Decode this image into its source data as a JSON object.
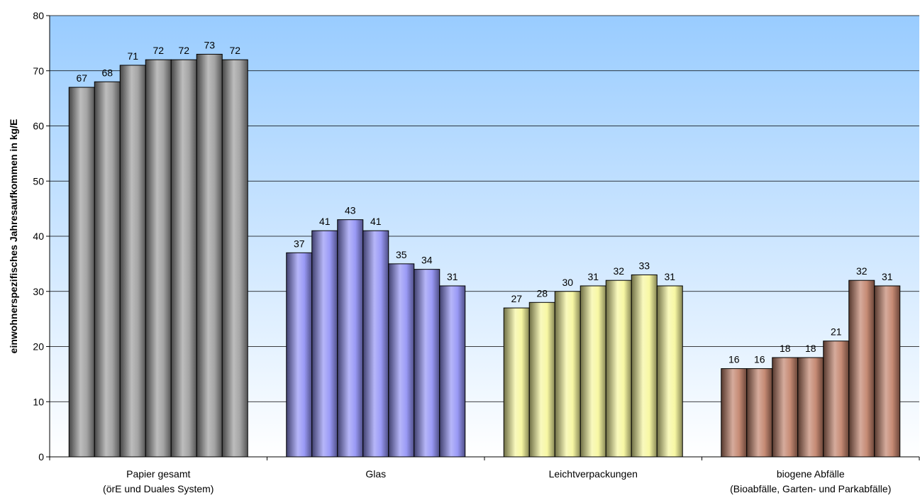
{
  "chart_data": {
    "type": "bar",
    "title": "",
    "ylabel": "einwohnerspezifisches Jahresaufkommen in kg/E",
    "xlabel": "",
    "ylim": [
      0,
      80
    ],
    "yticks": [
      0,
      10,
      20,
      30,
      40,
      50,
      60,
      70,
      80
    ],
    "grid": true,
    "legend": "none",
    "categories": [
      [
        "Papier gesamt",
        "(örE und Duales System)"
      ],
      [
        "Glas"
      ],
      [
        "Leichtverpackungen"
      ],
      [
        "biogene Abfälle",
        "(Bioabfälle, Garten- und Parkabfälle)"
      ]
    ],
    "groups": [
      {
        "color": "#9a9a9a",
        "values": [
          67,
          68,
          71,
          72,
          72,
          73,
          72
        ],
        "labels": [
          "67",
          "68",
          "71",
          "72",
          "72",
          "73",
          "72"
        ]
      },
      {
        "color": "#8f8ff5",
        "values": [
          37,
          41,
          43,
          41,
          35,
          34,
          31
        ],
        "labels": [
          "37",
          "41",
          "43",
          "41",
          "35",
          "34",
          "31"
        ]
      },
      {
        "color": "#f6f69a",
        "values": [
          27,
          28,
          30,
          31,
          32,
          33,
          31
        ],
        "labels": [
          "27",
          "28",
          "30",
          "31",
          "32",
          "33",
          "31"
        ]
      },
      {
        "color": "#c07e66",
        "values": [
          16,
          16,
          18,
          18,
          21,
          32,
          31
        ],
        "labels": [
          "16",
          "16",
          "18",
          "18",
          "21",
          "32",
          "31"
        ]
      }
    ]
  }
}
